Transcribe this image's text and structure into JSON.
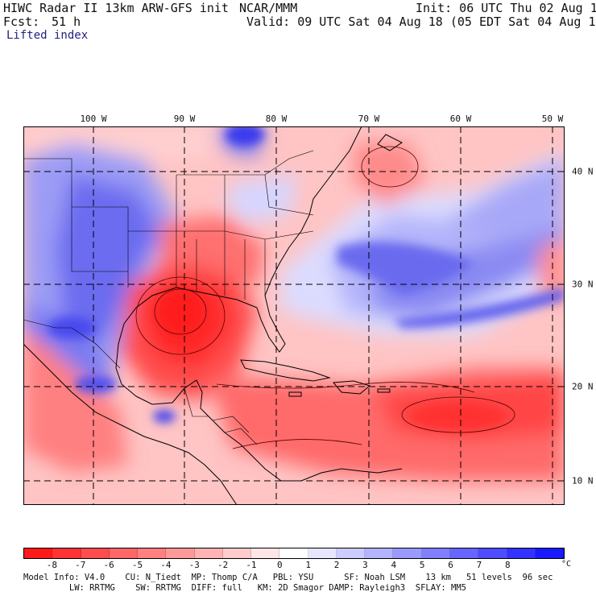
{
  "header": {
    "title": "HIWC Radar II 13km ARW-GFS init",
    "org": "NCAR/MMM",
    "init": "Init: 06 UTC Thu 02 Aug 18",
    "fcst_label": "Fcst:",
    "fcst_hours": "51 h",
    "valid": "Valid: 09 UTC Sat 04 Aug 18 (05 EDT Sat 04 Aug 18)",
    "field": "Lifted index"
  },
  "map": {
    "lon_labels": [
      "100 W",
      "90 W",
      "80 W",
      "70 W",
      "60 W",
      "50 W"
    ],
    "lat_labels": [
      "40 N",
      "30 N",
      "20 N",
      "10 N"
    ],
    "grid_line_style": "dashed",
    "colors": {
      "unstable_max": "#ff2020",
      "neutral": "#ffffff",
      "stable_max": "#1010e8"
    }
  },
  "colorbar": {
    "ticks": [
      "-8",
      "-7",
      "-6",
      "-5",
      "-4",
      "-3",
      "-2",
      "-1",
      "0",
      "1",
      "2",
      "3",
      "4",
      "5",
      "6",
      "7",
      "8"
    ],
    "unit": "°C",
    "colors": [
      "#ff1a1a",
      "#ff3333",
      "#ff4d4d",
      "#ff6666",
      "#ff8080",
      "#ff9999",
      "#ffb3b3",
      "#ffcccc",
      "#ffe6e6",
      "#ffffff",
      "#e6e6ff",
      "#ccccff",
      "#b3b3ff",
      "#9999ff",
      "#8080ff",
      "#6666ff",
      "#4d4dff",
      "#3333ff",
      "#1a1aff"
    ]
  },
  "footer": {
    "line1": "Model Info: V4.0    CU: N_Tiedt  MP: Thomp C/A   PBL: YSU      SF: Noah LSM    13 km   51 levels  96 sec",
    "line2": "         LW: RRTMG    SW: RRTMG  DIFF: full   KM: 2D Smagor DAMP: Rayleigh3  SFLAY: MM5"
  }
}
